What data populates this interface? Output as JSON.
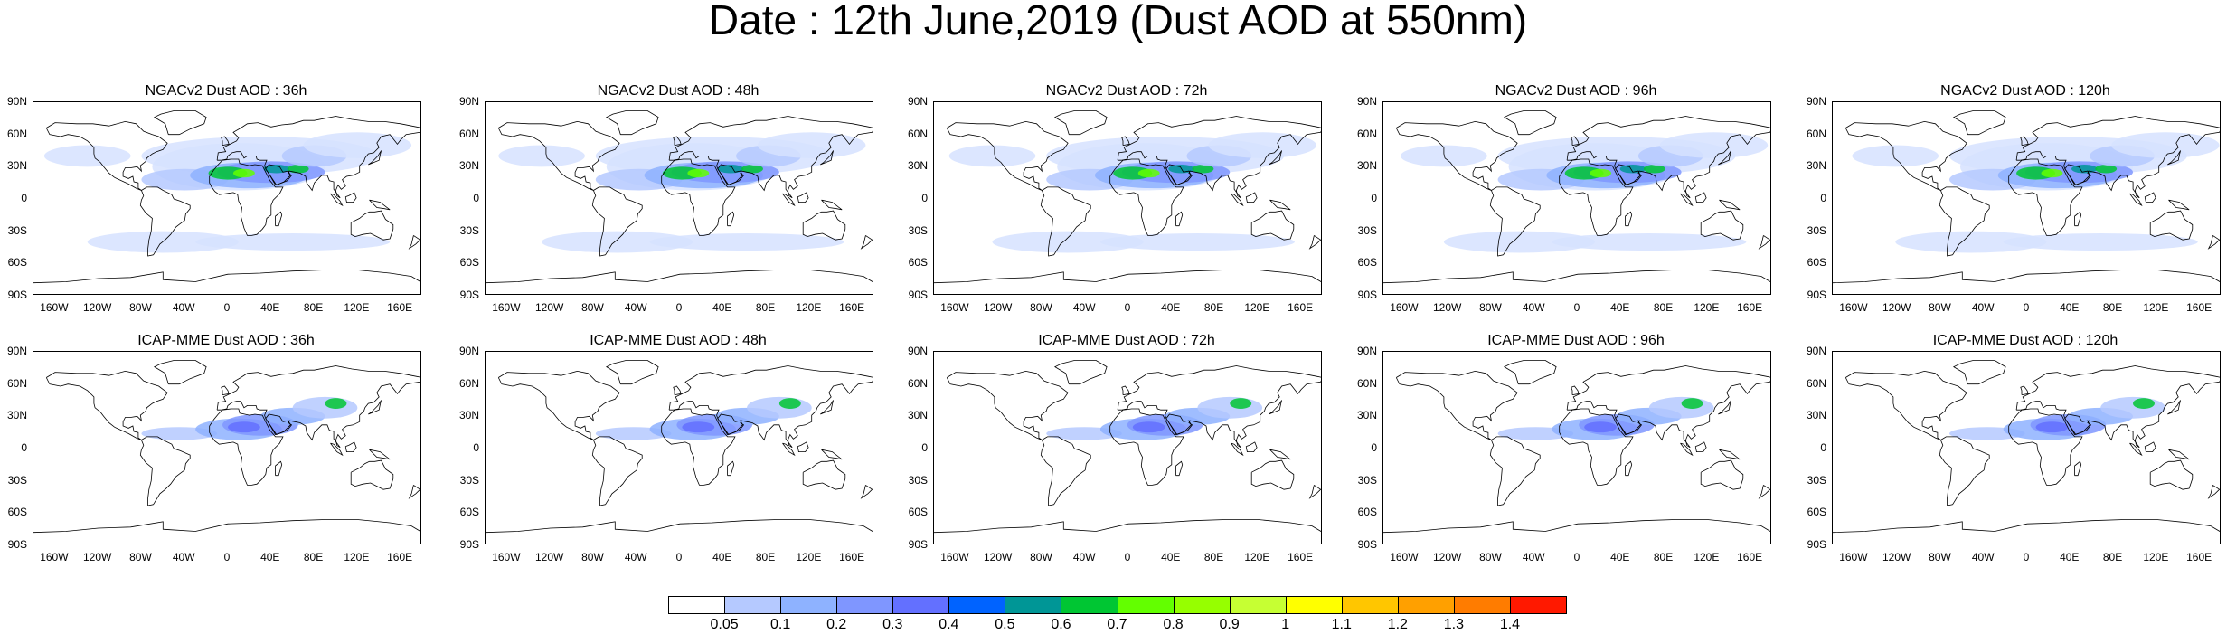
{
  "title": "Date : 12th June,2019 (Dust AOD at 550nm)",
  "panels": [
    {
      "title": "NGACv2 Dust AOD : 36h"
    },
    {
      "title": "NGACv2 Dust AOD : 48h"
    },
    {
      "title": "NGACv2 Dust AOD : 72h"
    },
    {
      "title": "NGACv2 Dust AOD : 96h"
    },
    {
      "title": "NGACv2 Dust AOD : 120h"
    },
    {
      "title": "ICAP-MME Dust AOD : 36h"
    },
    {
      "title": "ICAP-MME Dust AOD : 48h"
    },
    {
      "title": "ICAP-MME Dust AOD : 72h"
    },
    {
      "title": "ICAP-MME Dust AOD : 96h"
    },
    {
      "title": "ICAP-MME Dust AOD : 120h"
    }
  ],
  "lat_ticks": [
    "90N",
    "60N",
    "30N",
    "0",
    "30S",
    "60S",
    "90S"
  ],
  "lon_ticks": [
    "160W",
    "120W",
    "80W",
    "40W",
    "0",
    "40E",
    "80E",
    "120E",
    "160E"
  ],
  "colorbar": {
    "labels": [
      "0.05",
      "0.1",
      "0.2",
      "0.3",
      "0.4",
      "0.5",
      "0.6",
      "0.7",
      "0.8",
      "0.9",
      "1",
      "1.1",
      "1.2",
      "1.3",
      "1.4"
    ],
    "colors": [
      "#ffffff",
      "#d6e2ff",
      "#b5c9ff",
      "#8eb2ff",
      "#7f96ff",
      "#6370ff",
      "#0063ff",
      "#009696",
      "#00c633",
      "#63ff00",
      "#96ff00",
      "#c6ff33",
      "#ffff00",
      "#ffc600",
      "#ffa000",
      "#ff7c00",
      "#ff1900"
    ]
  }
}
